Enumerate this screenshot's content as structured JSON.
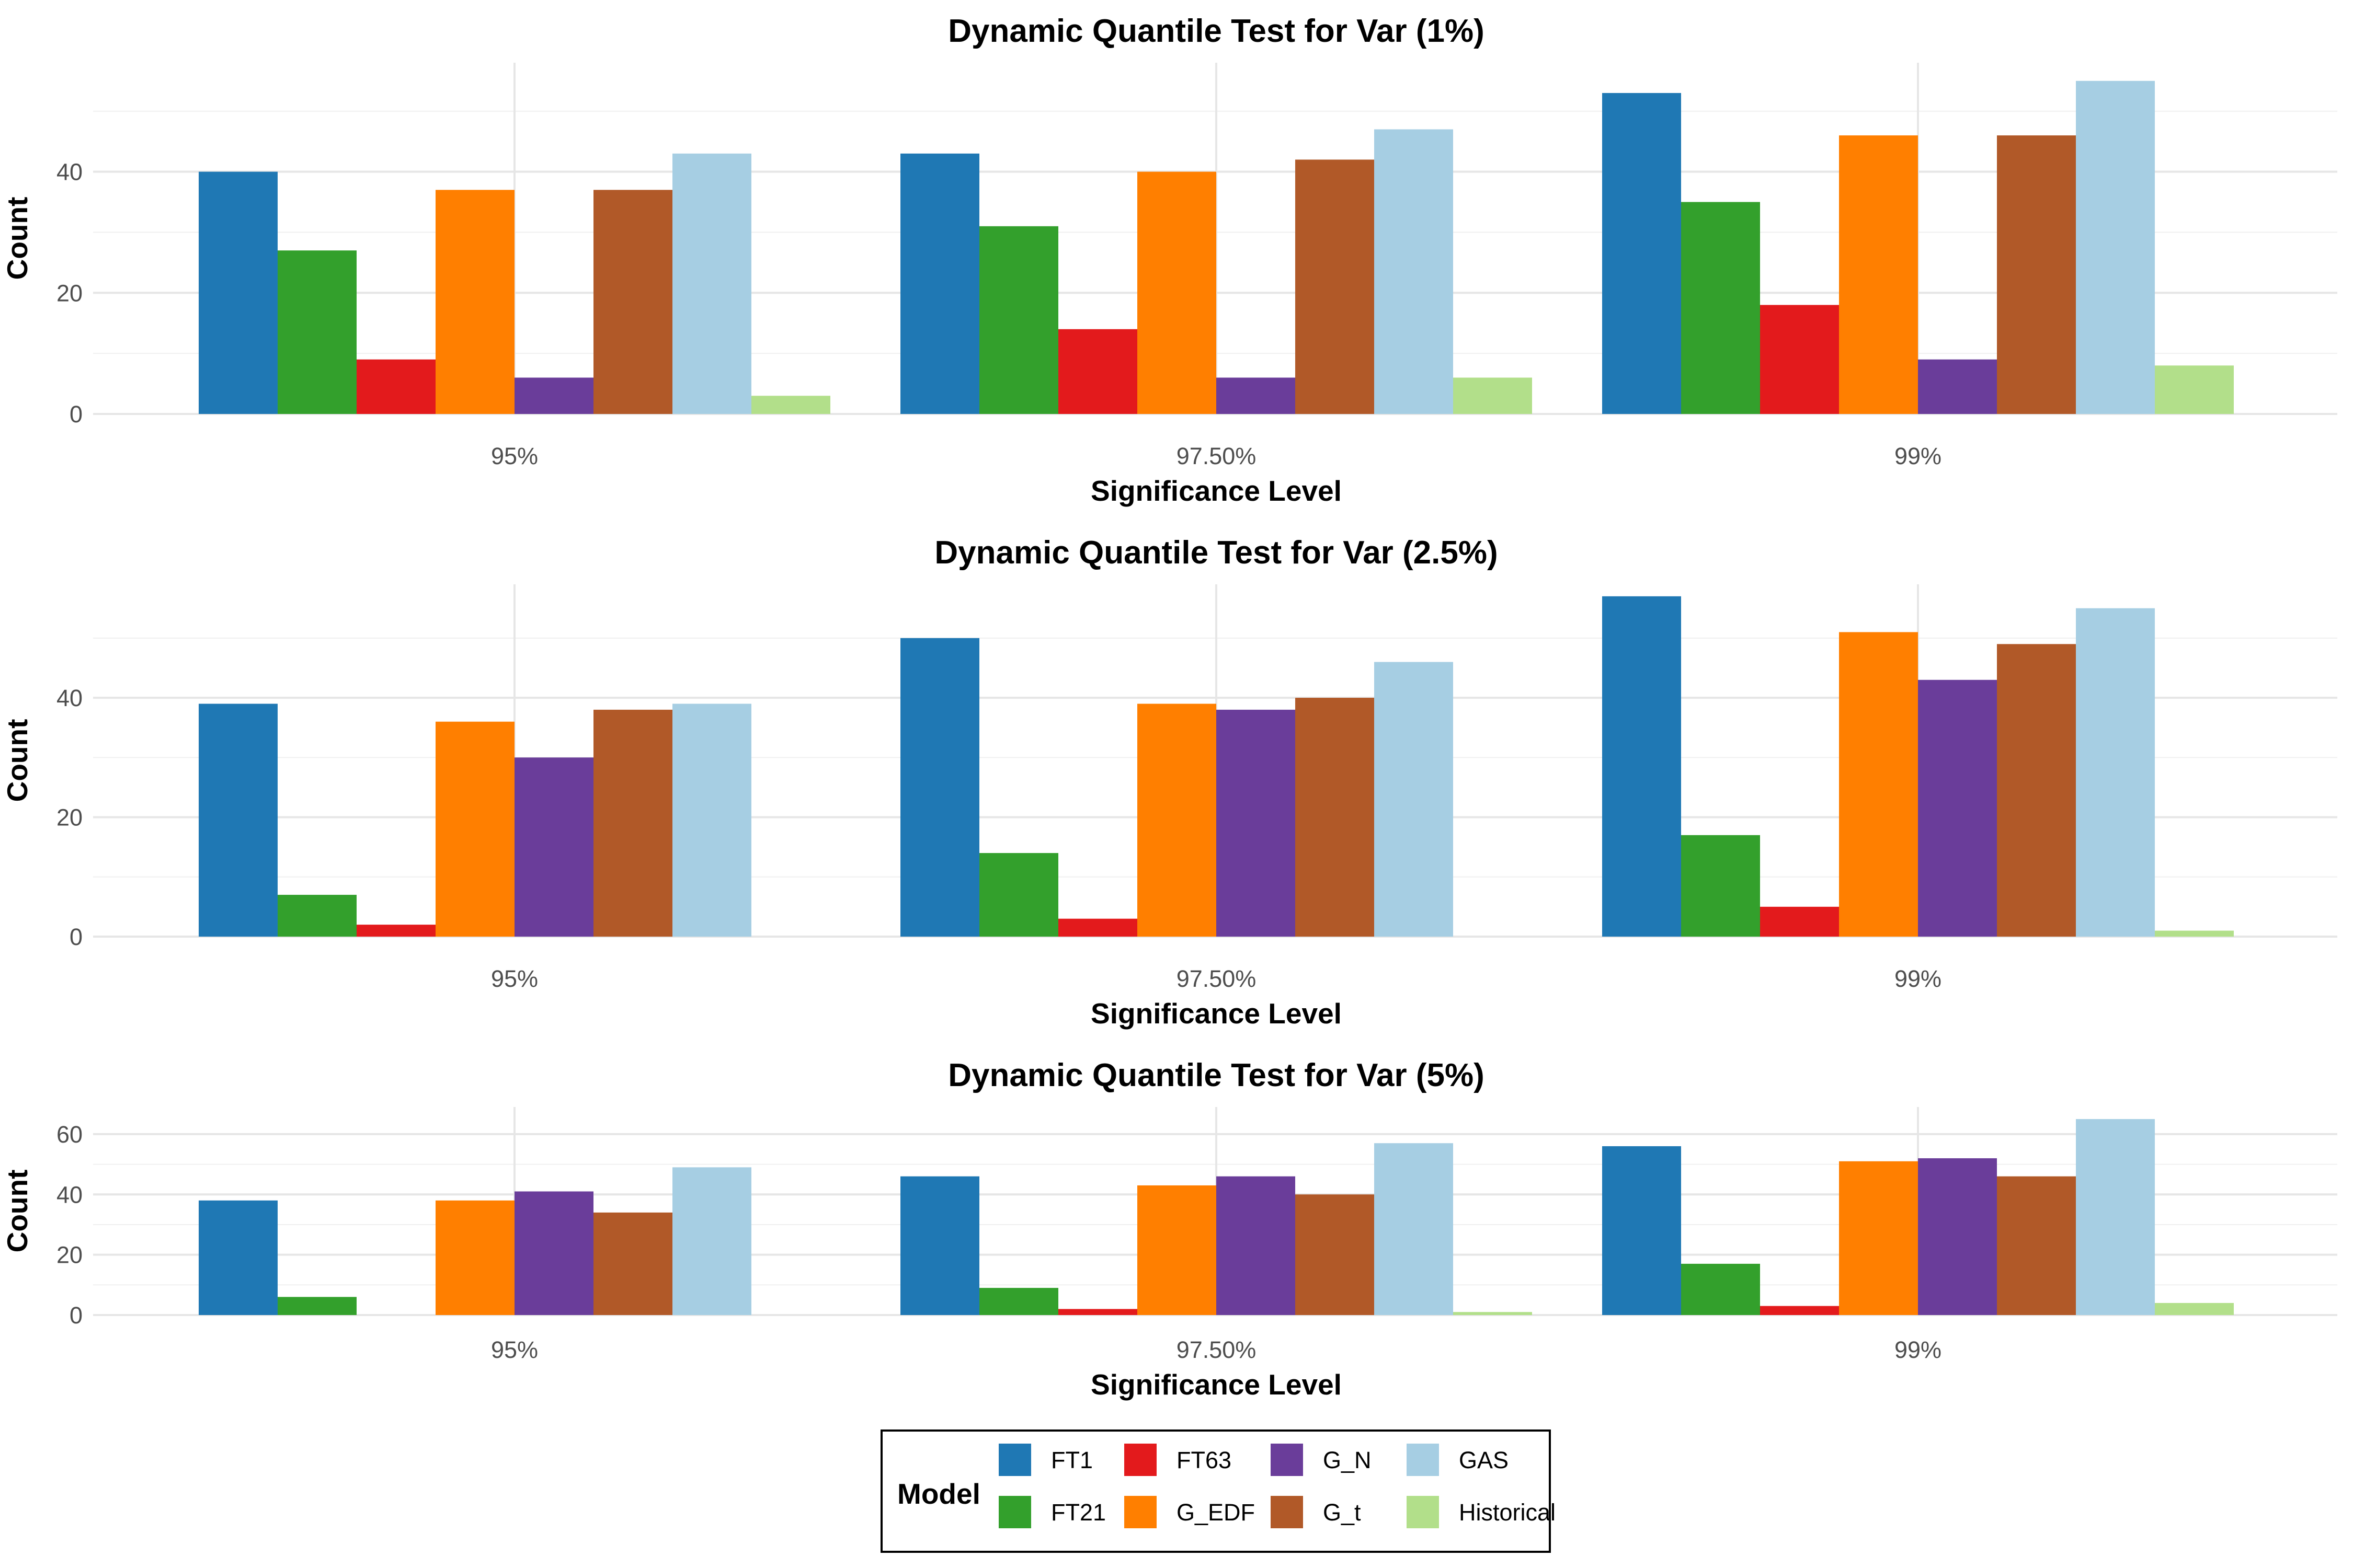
{
  "chart_data": [
    {
      "type": "bar",
      "title": "Dynamic Quantile Test for Var (1%)",
      "xlabel": "Significance Level",
      "ylabel": "Count",
      "categories": [
        "95%",
        "97.50%",
        "99%"
      ],
      "ylim": [
        0,
        58
      ],
      "yticks": [
        0,
        20,
        40
      ],
      "series": [
        {
          "name": "FT1",
          "values": [
            40,
            43,
            53
          ]
        },
        {
          "name": "FT21",
          "values": [
            27,
            31,
            35
          ]
        },
        {
          "name": "FT63",
          "values": [
            9,
            14,
            18
          ]
        },
        {
          "name": "G_EDF",
          "values": [
            37,
            40,
            46
          ]
        },
        {
          "name": "G_N",
          "values": [
            6,
            6,
            9
          ]
        },
        {
          "name": "G_t",
          "values": [
            37,
            42,
            46
          ]
        },
        {
          "name": "GAS",
          "values": [
            43,
            47,
            55
          ]
        },
        {
          "name": "Historical",
          "values": [
            3,
            6,
            8
          ]
        }
      ]
    },
    {
      "type": "bar",
      "title": "Dynamic Quantile Test for Var (2.5%)",
      "xlabel": "Significance Level",
      "ylabel": "Count",
      "categories": [
        "95%",
        "97.50%",
        "99%"
      ],
      "ylim": [
        0,
        59
      ],
      "yticks": [
        0,
        20,
        40
      ],
      "series": [
        {
          "name": "FT1",
          "values": [
            39,
            50,
            57
          ]
        },
        {
          "name": "FT21",
          "values": [
            7,
            14,
            17
          ]
        },
        {
          "name": "FT63",
          "values": [
            2,
            3,
            5
          ]
        },
        {
          "name": "G_EDF",
          "values": [
            36,
            39,
            51
          ]
        },
        {
          "name": "G_N",
          "values": [
            30,
            38,
            43
          ]
        },
        {
          "name": "G_t",
          "values": [
            38,
            40,
            49
          ]
        },
        {
          "name": "GAS",
          "values": [
            39,
            46,
            55
          ]
        },
        {
          "name": "Historical",
          "values": [
            0,
            0,
            1
          ]
        }
      ]
    },
    {
      "type": "bar",
      "title": "Dynamic Quantile Test for Var (5%)",
      "xlabel": "Significance Level",
      "ylabel": "Count",
      "categories": [
        "95%",
        "97.50%",
        "99%"
      ],
      "ylim": [
        0,
        69
      ],
      "yticks": [
        0,
        20,
        40,
        60
      ],
      "series": [
        {
          "name": "FT1",
          "values": [
            38,
            46,
            56
          ]
        },
        {
          "name": "FT21",
          "values": [
            6,
            9,
            17
          ]
        },
        {
          "name": "FT63",
          "values": [
            0,
            2,
            3
          ]
        },
        {
          "name": "G_EDF",
          "values": [
            38,
            43,
            51
          ]
        },
        {
          "name": "G_N",
          "values": [
            41,
            46,
            52
          ]
        },
        {
          "name": "G_t",
          "values": [
            34,
            40,
            46
          ]
        },
        {
          "name": "GAS",
          "values": [
            49,
            57,
            65
          ]
        },
        {
          "name": "Historical",
          "values": [
            0,
            1,
            4
          ]
        }
      ]
    }
  ],
  "legend": {
    "title": "Model",
    "position": "bottom",
    "items": [
      {
        "name": "FT1",
        "color": "#1f78b4"
      },
      {
        "name": "FT21",
        "color": "#33a02c"
      },
      {
        "name": "FT63",
        "color": "#e31a1c"
      },
      {
        "name": "G_EDF",
        "color": "#ff7f00"
      },
      {
        "name": "G_N",
        "color": "#6a3d9a"
      },
      {
        "name": "G_t",
        "color": "#b15928"
      },
      {
        "name": "GAS",
        "color": "#a6cee3"
      },
      {
        "name": "Historical",
        "color": "#b2df8a"
      }
    ]
  }
}
